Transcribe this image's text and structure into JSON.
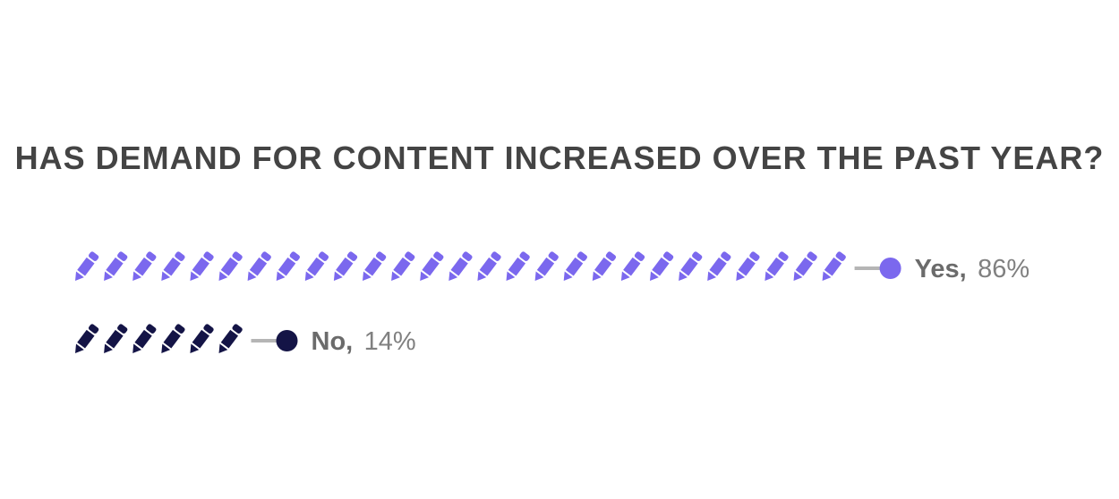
{
  "chart_data": {
    "type": "pictograph",
    "title": "HAS DEMAND FOR CONTENT INCREASED OVER THE PAST YEAR?",
    "icon": "pencil-icon",
    "series": [
      {
        "name": "Yes,",
        "value_label": "86%",
        "value": 86,
        "icon_count": 27,
        "color": "#7b68ee"
      },
      {
        "name": "No,",
        "value_label": "14%",
        "value": 14,
        "icon_count": 6,
        "color": "#141446"
      }
    ]
  }
}
